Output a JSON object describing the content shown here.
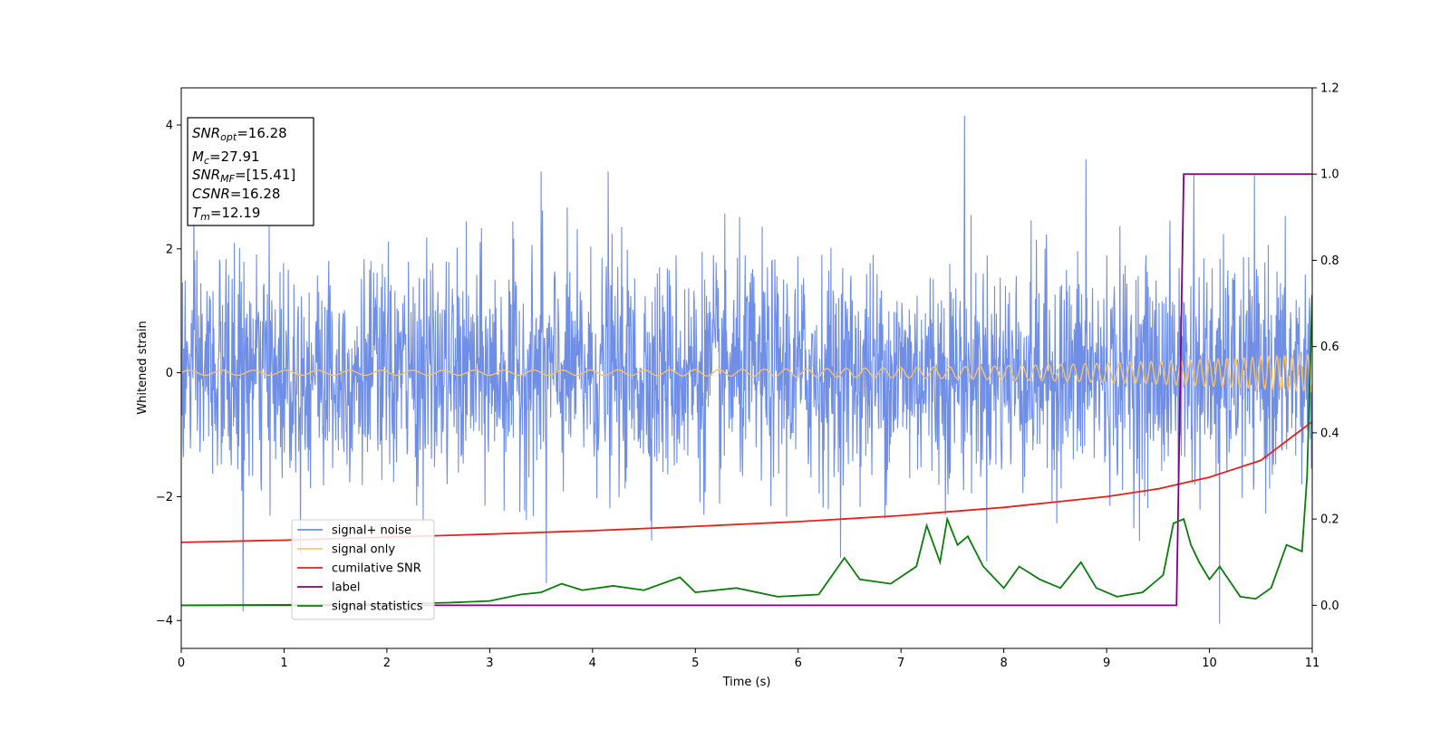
{
  "chart_data": {
    "type": "line",
    "title": "",
    "xlabel": "Time (s)",
    "ylabel": "Whitened strain",
    "xlim": [
      0,
      11
    ],
    "ylim": [
      -4.45,
      4.6
    ],
    "y2lim": [
      -0.1,
      1.2
    ],
    "grid": false,
    "legend_position": "lower-left",
    "xticks": [
      "0",
      "1",
      "2",
      "3",
      "4",
      "5",
      "6",
      "7",
      "8",
      "9",
      "10",
      "11"
    ],
    "yticks_left": [
      "4",
      "2",
      "0",
      "−2",
      "−4"
    ],
    "yticks_left_values": [
      4,
      2,
      0,
      -2,
      -4
    ],
    "yticks_right": [
      "1.2",
      "1.0",
      "0.8",
      "0.6",
      "0.4",
      "0.2",
      "0.0"
    ],
    "yticks_right_values": [
      1.2,
      1.0,
      0.8,
      0.6,
      0.4,
      0.2,
      0.0
    ],
    "colors": {
      "noise": "#6f8ee6",
      "signal": "#f5c26b",
      "snr": "#e8201a",
      "label": "#800080",
      "stats": "#0a7d0a"
    },
    "info_box": [
      {
        "sym": "SNR",
        "sub": "opt",
        "value": "=16.28"
      },
      {
        "sym": "M",
        "sub": "c",
        "value": "=27.91"
      },
      {
        "sym": "SNR",
        "sub": "MF",
        "value": "=[15.41]"
      },
      {
        "sym": "CSNR",
        "sub": "",
        "value": "=16.28"
      },
      {
        "sym": "T",
        "sub": "m",
        "value": "=12.19"
      }
    ],
    "series": [
      {
        "name": "signal+ noise",
        "axis": "left",
        "style": "noise",
        "std": 0.9,
        "peaks": [
          [
            0.6,
            -3.85
          ],
          [
            3.5,
            3.25
          ],
          [
            3.55,
            -3.4
          ],
          [
            4.15,
            3.25
          ],
          [
            7.62,
            4.15
          ],
          [
            8.8,
            3.45
          ],
          [
            10.1,
            -4.05
          ],
          [
            9.85,
            3.2
          ]
        ]
      },
      {
        "name": "signal only",
        "axis": "left",
        "style": "chirp",
        "f0": 3.2,
        "f1": 14.0,
        "a0": 0.04,
        "a1": 0.3
      },
      {
        "name": "cumilative SNR",
        "axis": "right",
        "x": [
          0,
          1,
          2,
          3,
          4,
          5,
          6,
          7,
          8,
          9,
          9.5,
          10,
          10.5,
          11
        ],
        "y": [
          0.146,
          0.151,
          0.158,
          0.165,
          0.173,
          0.183,
          0.194,
          0.208,
          0.227,
          0.252,
          0.27,
          0.297,
          0.336,
          0.426
        ]
      },
      {
        "name": "label",
        "axis": "right",
        "x": [
          0,
          9.68,
          9.75,
          11
        ],
        "y": [
          0.0,
          0.0,
          1.0,
          1.0
        ]
      },
      {
        "name": "signal statistics",
        "axis": "right",
        "x": [
          0,
          1,
          2,
          2.6,
          3.0,
          3.3,
          3.5,
          3.7,
          3.9,
          4.2,
          4.5,
          4.85,
          5.0,
          5.4,
          5.8,
          6.2,
          6.45,
          6.6,
          6.9,
          7.15,
          7.25,
          7.38,
          7.45,
          7.55,
          7.65,
          7.8,
          8.0,
          8.15,
          8.35,
          8.55,
          8.75,
          8.9,
          9.1,
          9.35,
          9.55,
          9.65,
          9.75,
          9.82,
          9.9,
          10.0,
          10.1,
          10.3,
          10.45,
          10.6,
          10.75,
          10.9,
          10.95,
          11.0
        ],
        "y": [
          0.0,
          0.001,
          0.003,
          0.006,
          0.01,
          0.025,
          0.03,
          0.05,
          0.035,
          0.045,
          0.035,
          0.065,
          0.03,
          0.04,
          0.02,
          0.025,
          0.11,
          0.06,
          0.05,
          0.09,
          0.185,
          0.1,
          0.2,
          0.14,
          0.16,
          0.09,
          0.04,
          0.09,
          0.06,
          0.04,
          0.1,
          0.04,
          0.02,
          0.03,
          0.07,
          0.19,
          0.2,
          0.14,
          0.1,
          0.06,
          0.09,
          0.02,
          0.015,
          0.04,
          0.14,
          0.125,
          0.3,
          0.72
        ]
      }
    ]
  }
}
